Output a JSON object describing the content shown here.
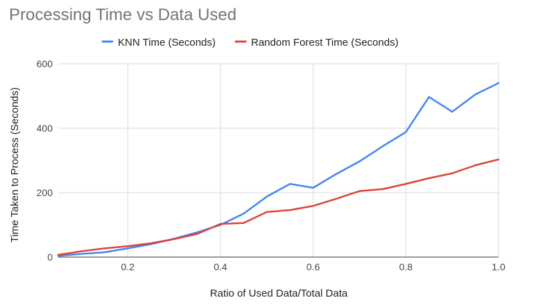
{
  "chart_data": {
    "type": "line",
    "title": "Processing Time vs Data Used",
    "xlabel": "Ratio of Used Data/Total Data",
    "ylabel": "Time Taken to Process (Seconds)",
    "xlim": [
      0.05,
      1.0
    ],
    "ylim": [
      0,
      600
    ],
    "x_ticks": [
      0.2,
      0.4,
      0.6,
      0.8,
      1.0
    ],
    "x_tick_labels": [
      "0.2",
      "0.4",
      "0.6",
      "0.8",
      "1.0"
    ],
    "y_ticks": [
      0,
      200,
      400,
      600
    ],
    "y_tick_labels": [
      "0",
      "200",
      "400",
      "600"
    ],
    "grid": "vertical-and-horizontal",
    "legend_position": "top",
    "x": [
      0.05,
      0.1,
      0.15,
      0.2,
      0.25,
      0.3,
      0.35,
      0.4,
      0.45,
      0.5,
      0.55,
      0.6,
      0.65,
      0.7,
      0.75,
      0.8,
      0.85,
      0.9,
      0.95,
      1.0
    ],
    "series": [
      {
        "name": "KNN Time (Seconds)",
        "color": "#4285f4",
        "values": [
          4,
          10,
          15,
          27,
          40,
          57,
          77,
          100,
          135,
          188,
          227,
          215,
          258,
          297,
          344,
          388,
          497,
          451,
          505,
          540
        ]
      },
      {
        "name": "Random Forest Time (Seconds)",
        "color": "#db4437",
        "values": [
          7,
          18,
          27,
          34,
          43,
          56,
          72,
          103,
          106,
          140,
          146,
          159,
          181,
          205,
          211,
          227,
          245,
          260,
          285,
          303
        ]
      }
    ]
  }
}
